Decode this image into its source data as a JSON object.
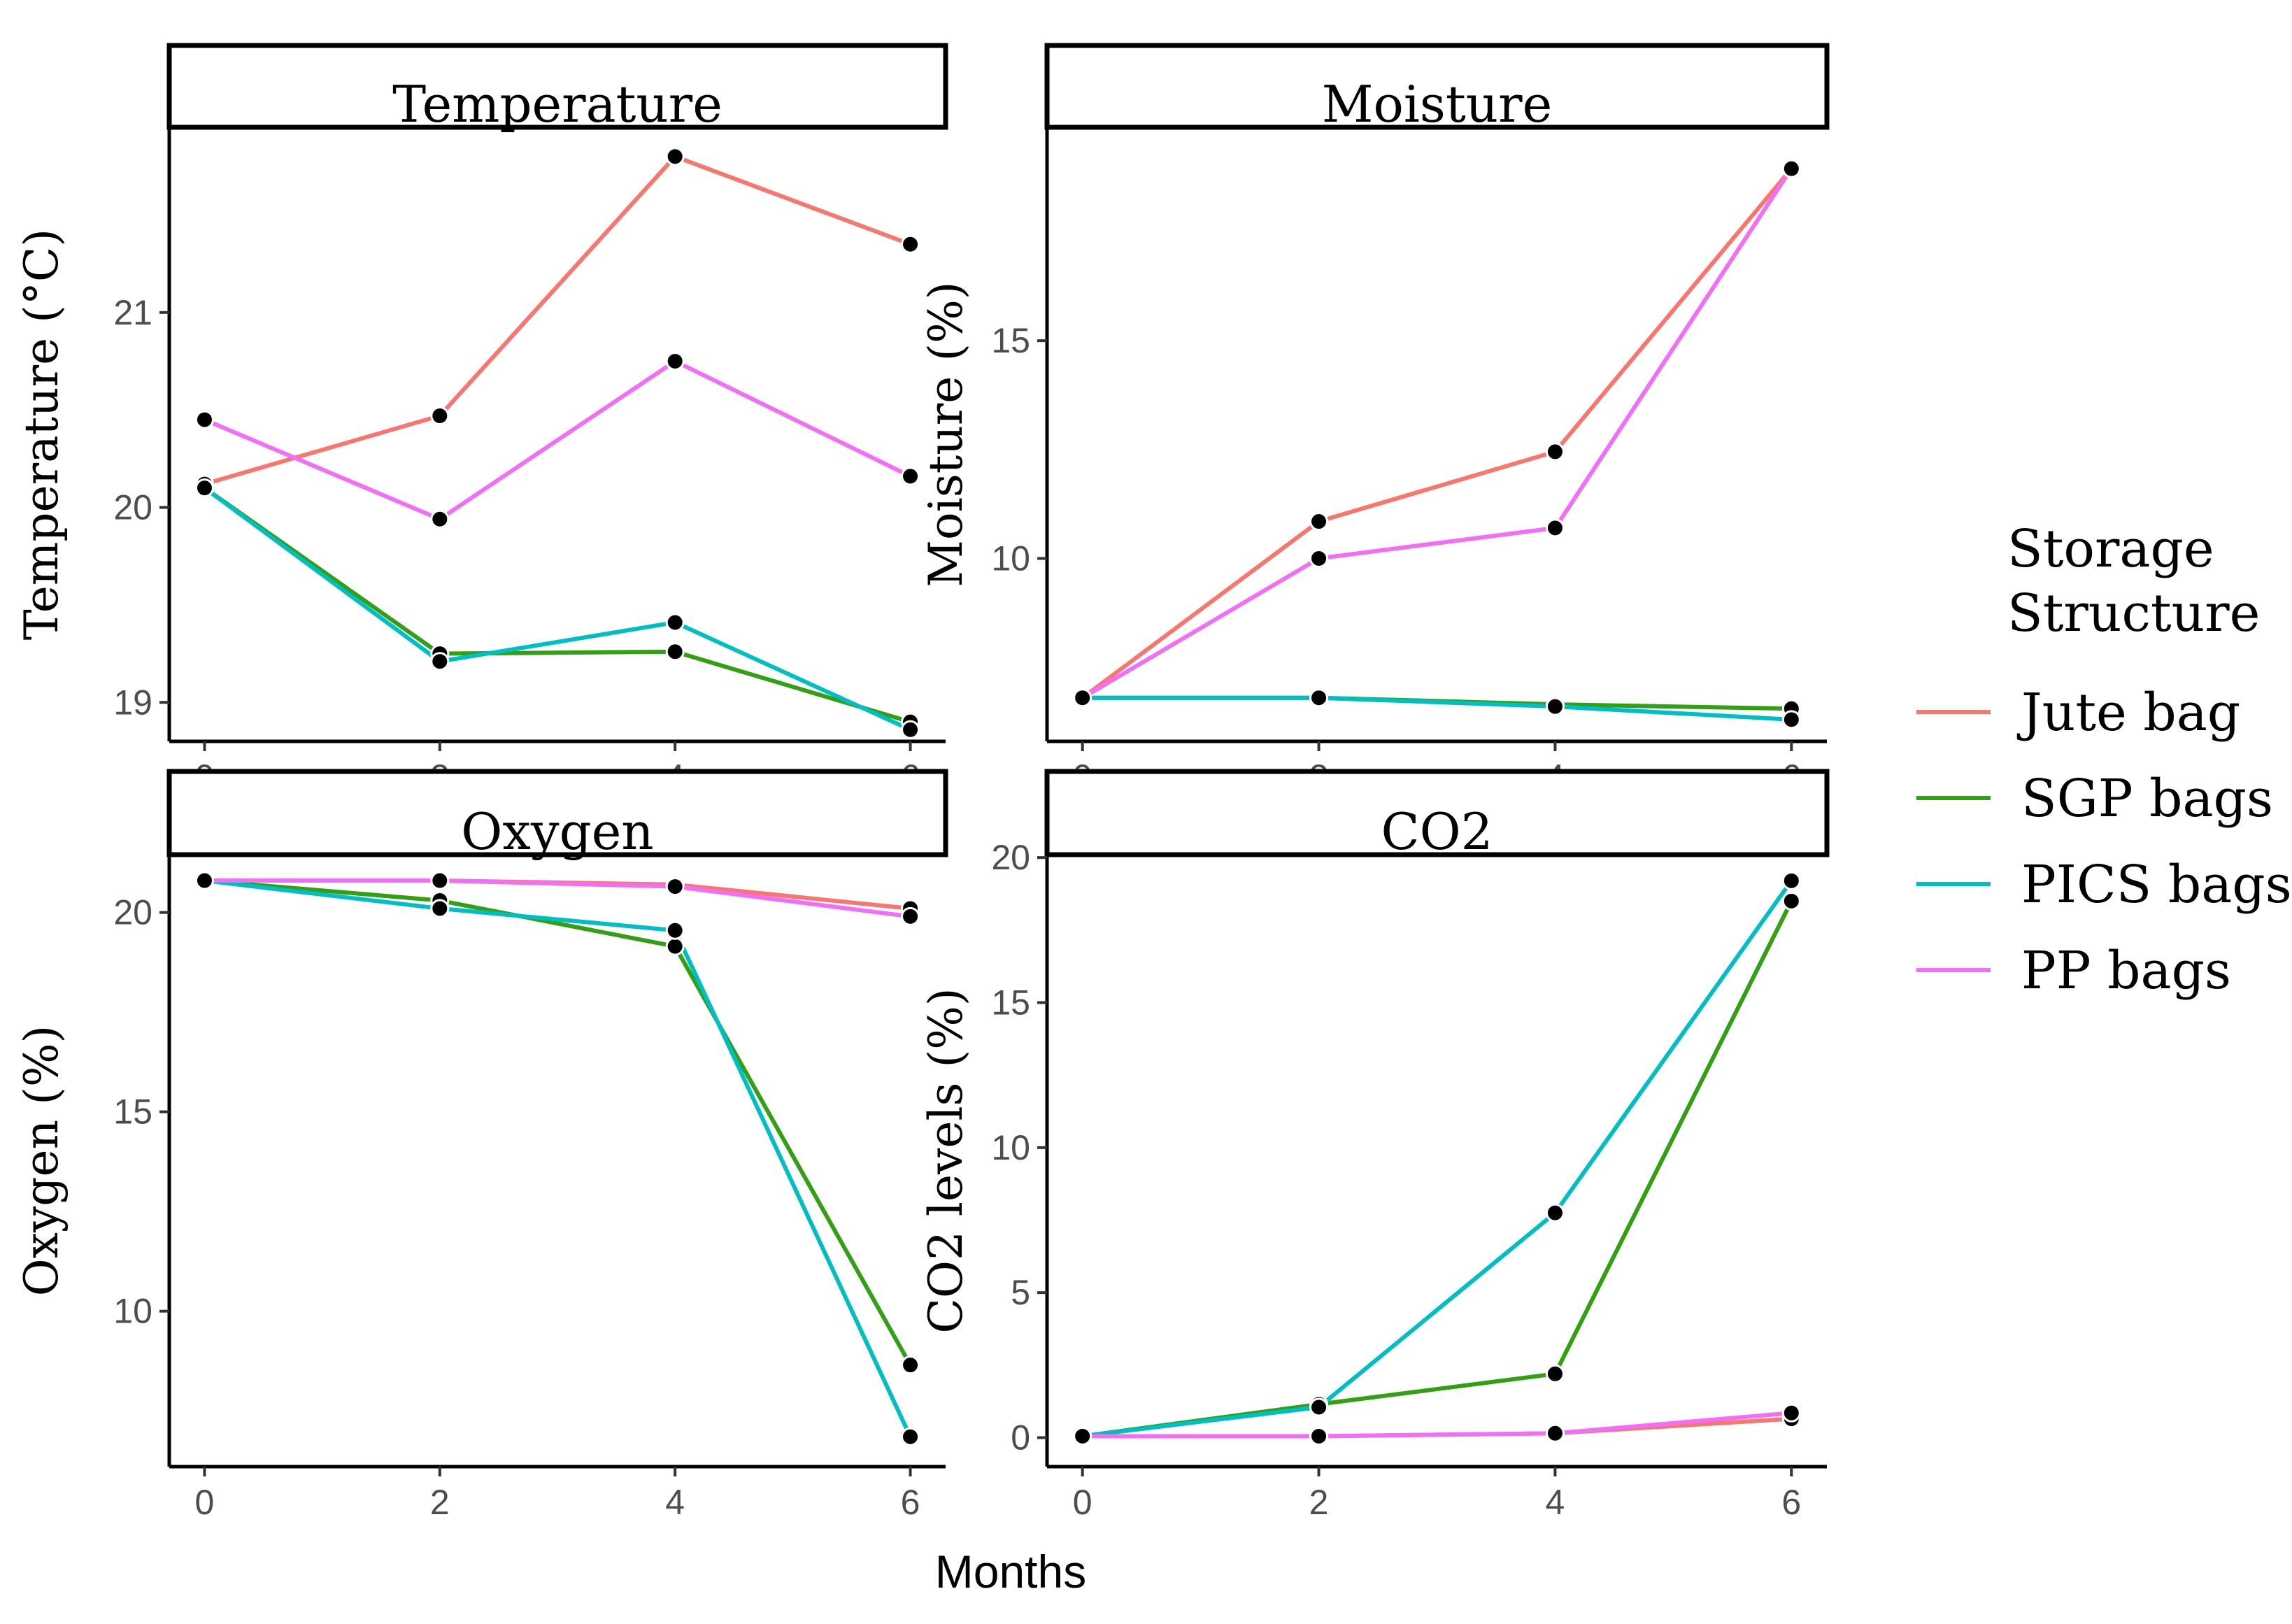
{
  "chart_data": {
    "type": "line",
    "x_axis_label": "Months",
    "x_ticks": [
      0,
      2,
      4,
      6
    ],
    "legend": {
      "title_lines": [
        "Storage",
        "Structure"
      ],
      "placement": "right"
    },
    "series_styles": [
      {
        "name": "Jute bag",
        "color": "#F8766D"
      },
      {
        "name": " SGP bags",
        "color": "#31A013"
      },
      {
        "name": "PICS bags",
        "color": "#00BFC4"
      },
      {
        "name": "PP bags",
        "color": "#F36EF7"
      }
    ],
    "panels": [
      {
        "title": "Temperature",
        "ylabel": "Temperature (°C)",
        "ylim": [
          18.8,
          21.95
        ],
        "yticks": [
          19,
          20,
          21
        ],
        "x": [
          0,
          2,
          4,
          6
        ],
        "series": [
          {
            "name": "Jute bag",
            "values": [
              20.12,
              20.47,
              21.8,
              21.35
            ]
          },
          {
            "name": " SGP bags",
            "values": [
              20.1,
              19.25,
              19.26,
              18.9
            ]
          },
          {
            "name": "PICS bags",
            "values": [
              20.1,
              19.21,
              19.41,
              18.86
            ]
          },
          {
            "name": "PP bags",
            "values": [
              20.45,
              19.94,
              20.75,
              20.16
            ]
          }
        ]
      },
      {
        "title": "Moisture",
        "ylabel": "Moisture (%)",
        "ylim": [
          5.8,
          19.9
        ],
        "yticks": [
          10,
          15
        ],
        "x": [
          0,
          2,
          4,
          6
        ],
        "series": [
          {
            "name": "Jute bag",
            "values": [
              6.8,
              10.85,
              12.45,
              18.95
            ]
          },
          {
            "name": " SGP bags",
            "values": [
              6.8,
              6.8,
              6.65,
              6.55
            ]
          },
          {
            "name": "PICS bags",
            "values": [
              6.8,
              6.8,
              6.6,
              6.3
            ]
          },
          {
            "name": "PP bags",
            "values": [
              6.8,
              10.0,
              10.7,
              18.95
            ]
          }
        ]
      },
      {
        "title": "Oxygen",
        "ylabel": "Oxygen (%)",
        "ylim": [
          6.1,
          21.45
        ],
        "yticks": [
          10,
          15,
          20
        ],
        "x": [
          0,
          2,
          4,
          6
        ],
        "series": [
          {
            "name": "Jute bag",
            "values": [
              20.8,
              20.8,
              20.7,
              20.1
            ]
          },
          {
            "name": " SGP bags",
            "values": [
              20.8,
              20.3,
              19.15,
              8.65
            ]
          },
          {
            "name": "PICS bags",
            "values": [
              20.8,
              20.1,
              19.55,
              6.85
            ]
          },
          {
            "name": "PP bags",
            "values": [
              20.8,
              20.8,
              20.65,
              19.9
            ]
          }
        ]
      },
      {
        "title": "CO2",
        "ylabel": "CO2 levels (%)",
        "ylim": [
          -1.0,
          20.1
        ],
        "yticks": [
          0,
          5,
          10,
          15,
          20
        ],
        "x": [
          0,
          2,
          4,
          6
        ],
        "series": [
          {
            "name": "Jute bag",
            "values": [
              0.05,
              0.05,
              0.15,
              0.65
            ]
          },
          {
            "name": " SGP bags",
            "values": [
              0.05,
              1.15,
              2.2,
              18.5
            ]
          },
          {
            "name": "PICS bags",
            "values": [
              0.05,
              1.05,
              7.75,
              19.2
            ]
          },
          {
            "name": "PP bags",
            "values": [
              0.05,
              0.05,
              0.15,
              0.85
            ]
          }
        ]
      }
    ]
  }
}
